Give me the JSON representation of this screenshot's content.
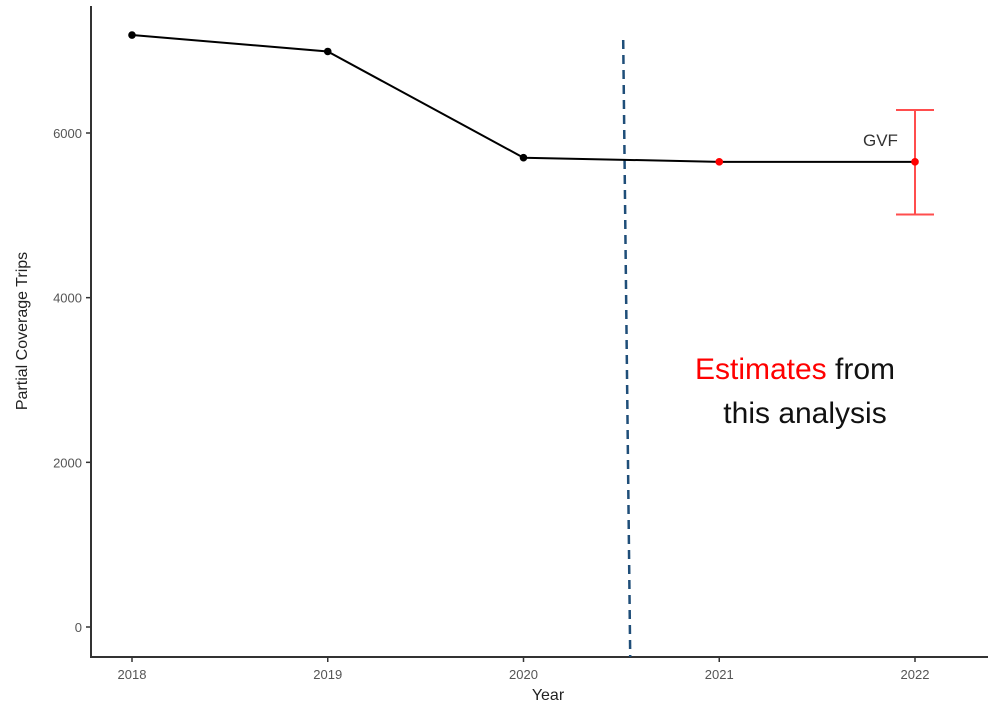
{
  "chart_data": {
    "type": "line",
    "xlabel": "Year",
    "ylabel": "Partial Coverage Trips",
    "x_ticks": [
      "2018",
      "2019",
      "2020",
      "2021",
      "2022"
    ],
    "y_ticks": [
      "0",
      "2000",
      "4000",
      "6000"
    ],
    "xlim": [
      2017.95,
      2022.3
    ],
    "ylim": [
      -370,
      7500
    ],
    "grid": false,
    "series": [
      {
        "color": "#000000",
        "points": [
          {
            "x": 2018,
            "y": 7190
          },
          {
            "x": 2019,
            "y": 6990
          },
          {
            "x": 2020,
            "y": 5700
          },
          {
            "x": 2021,
            "y": 5650
          },
          {
            "x": 2022,
            "y": 5650
          }
        ]
      }
    ],
    "estimate_points": [
      {
        "x": 2021,
        "y": 5650,
        "color": "#ff0000"
      },
      {
        "x": 2022,
        "y": 5650,
        "color": "#ff0000"
      }
    ],
    "error_bar": {
      "x": 2022,
      "y": 5650,
      "ymin": 5010,
      "ymax": 6280,
      "color": "#ff4d4d",
      "label": "GVF"
    },
    "divider": {
      "x": 2020.54,
      "color": "#1f4e79",
      "style": "dashed"
    },
    "annotation": {
      "highlight": "Estimates",
      "rest": " from",
      "line2": "this analysis",
      "highlight_color": "#ff0000"
    }
  }
}
